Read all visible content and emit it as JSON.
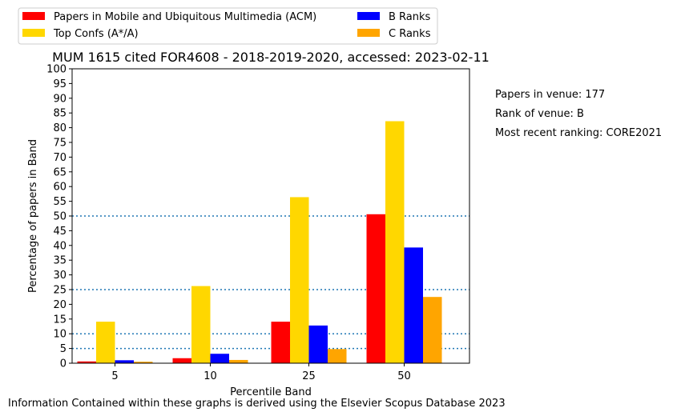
{
  "chart_data": {
    "type": "bar",
    "title": "MUM 1615 cited FOR4608 - 2018-2019-2020, accessed: 2023-02-11",
    "xlabel": "Percentile Band",
    "ylabel": "Percentage of papers in Band",
    "categories": [
      "5",
      "10",
      "25",
      "50"
    ],
    "ylim": [
      0,
      100
    ],
    "yticks": [
      "0",
      "5",
      "10",
      "15",
      "20",
      "25",
      "30",
      "35",
      "40",
      "45",
      "50",
      "55",
      "60",
      "65",
      "70",
      "75",
      "80",
      "85",
      "90",
      "95",
      "100"
    ],
    "reference_lines": [
      5,
      10,
      25,
      50
    ],
    "grid": false,
    "legend_position": "top, outside plot",
    "series": [
      {
        "name": "Papers in Mobile and Ubiquitous Multimedia (ACM)",
        "color": "#ff0000",
        "values": [
          0.6,
          1.7,
          14.1,
          50.6
        ]
      },
      {
        "name": "Top Confs (A*/A)",
        "color": "#ffd700",
        "values": [
          14.1,
          26.2,
          56.4,
          82.2
        ]
      },
      {
        "name": "B Ranks",
        "color": "#0000ff",
        "values": [
          1.0,
          3.2,
          12.8,
          39.3
        ]
      },
      {
        "name": "C Ranks",
        "color": "#ffa500",
        "values": [
          0.5,
          1.1,
          4.8,
          22.5
        ]
      }
    ],
    "reference_line_color": "#1f77b4"
  },
  "legend": {
    "items": [
      {
        "label": "Papers in Mobile and Ubiquitous Multimedia (ACM)",
        "color": "#ff0000"
      },
      {
        "label": "Top Confs (A*/A)",
        "color": "#ffd700"
      },
      {
        "label": "B Ranks",
        "color": "#0000ff"
      },
      {
        "label": "C Ranks",
        "color": "#ffa500"
      }
    ]
  },
  "side_info": {
    "papers_in_venue": "Papers in venue: 177",
    "rank_of_venue": "Rank of venue: B",
    "most_recent_ranking": "Most recent ranking: CORE2021"
  },
  "footer": {
    "note": "Information Contained within these graphs is derived using the Elsevier Scopus Database 2023"
  }
}
